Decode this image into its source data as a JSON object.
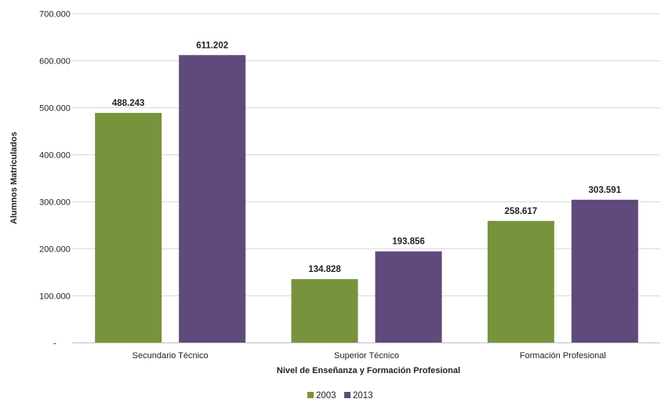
{
  "chart_data": {
    "type": "bar",
    "title": "",
    "xlabel": "Nivel de Enseñanza y Formación Profesional",
    "ylabel": "Alumnos Matriculados",
    "categories": [
      "Secundario Técnico",
      "Superior Técnico",
      "Formación Profesional"
    ],
    "series": [
      {
        "name": "2003",
        "color": "#77933c",
        "values": [
          488243,
          134828,
          258617
        ],
        "labels": [
          "488.243",
          "134.828",
          "258.617"
        ]
      },
      {
        "name": "2013",
        "color": "#604a7b",
        "values": [
          611202,
          193856,
          303591
        ],
        "labels": [
          "611.202",
          "193.856",
          "303.591"
        ]
      }
    ],
    "ylim": [
      0,
      700000
    ],
    "yticks": [
      0,
      100000,
      200000,
      300000,
      400000,
      500000,
      600000,
      700000
    ],
    "ytick_labels": [
      "-",
      "100.000",
      "200.000",
      "300.000",
      "400.000",
      "500.000",
      "600.000",
      "700.000"
    ],
    "grid": true,
    "legend_position": "bottom"
  }
}
